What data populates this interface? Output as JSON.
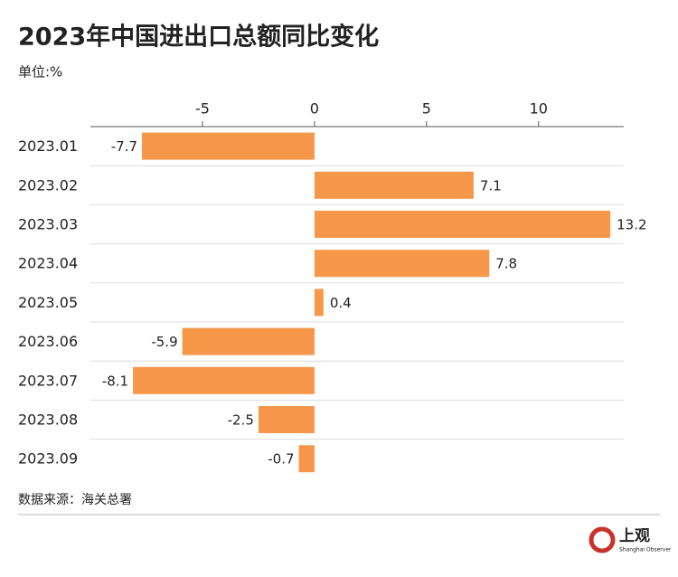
{
  "chart_data": {
    "type": "bar",
    "orientation": "horizontal",
    "title": "2023年中国进出口总额同比变化",
    "subtitle": "单位:%",
    "categories": [
      "2023.01",
      "2023.02",
      "2023.03",
      "2023.04",
      "2023.05",
      "2023.06",
      "2023.07",
      "2023.08",
      "2023.09"
    ],
    "values": [
      -7.7,
      7.1,
      13.2,
      7.8,
      0.4,
      -5.9,
      -8.1,
      -2.5,
      -0.7
    ],
    "color": "#f7974a",
    "xlim": [
      -10,
      13.8
    ],
    "xticks": [
      -5,
      0,
      5,
      10
    ],
    "source": "数据来源：海关总署",
    "logo": {
      "text": "上观",
      "subtext": "Shanghai Observer"
    }
  }
}
